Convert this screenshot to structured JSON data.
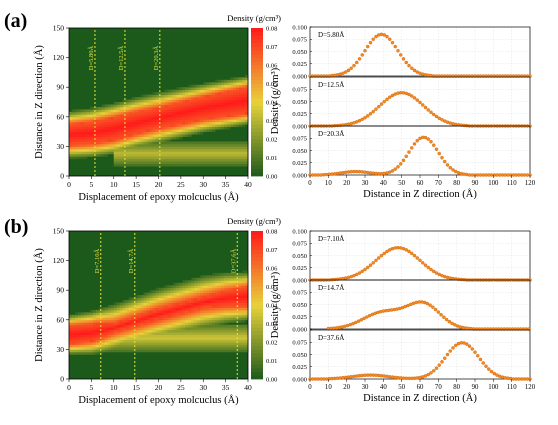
{
  "panels": [
    {
      "label": "(a)",
      "heatmap": {
        "type": "heatmap",
        "xlabel": "Displacement of epoxy molcuclus (Å)",
        "ylabel": "Distance in Z direction (Å)",
        "xlim": [
          0,
          40
        ],
        "ylim": [
          0,
          150
        ],
        "xticks": [
          "0",
          "5",
          "10",
          "15",
          "20",
          "25",
          "30",
          "35",
          "40"
        ],
        "yticks": [
          "0",
          "30",
          "60",
          "90",
          "120",
          "150"
        ],
        "colorbar": {
          "title": "Density (g/cm³)",
          "range": [
            0,
            0.08
          ],
          "ticks": [
            "0.00",
            "0.01",
            "0.02",
            "0.03",
            "0.04",
            "0.05",
            "0.06",
            "0.07",
            "0.08"
          ]
        },
        "band_center": [
          [
            0,
            42
          ],
          [
            5,
            44
          ],
          [
            10,
            48
          ],
          [
            15,
            54
          ],
          [
            20,
            59
          ],
          [
            25,
            64
          ],
          [
            30,
            69
          ],
          [
            35,
            73
          ],
          [
            40,
            77
          ]
        ],
        "band_halfwidth": [
          [
            0,
            24
          ],
          [
            10,
            26
          ],
          [
            20,
            26
          ],
          [
            30,
            25
          ],
          [
            40,
            25
          ]
        ],
        "core_halfwidth": [
          [
            0,
            10
          ],
          [
            10,
            11
          ],
          [
            20,
            10
          ],
          [
            30,
            11
          ],
          [
            40,
            13
          ]
        ],
        "secondary": [
          {
            "x_from": 10,
            "x_to": 40,
            "center": 23,
            "halfwidth": 12,
            "strength": 0.3
          }
        ],
        "markers": [
          {
            "x": 5.8,
            "label": "D=5.80Å"
          },
          {
            "x": 12.5,
            "label": "D=12.5Å"
          },
          {
            "x": 20.3,
            "label": "D=20.3Å"
          }
        ]
      },
      "profiles": [
        {
          "type": "scatter",
          "annotation": "D=5.80Å",
          "xlim": [
            0,
            120
          ],
          "ylim": [
            0,
            0.1
          ],
          "yticks": [
            "0.000",
            "0.025",
            "0.050",
            "0.075",
            "0.100"
          ],
          "peaks": [
            {
              "center": 39,
              "height": 0.085,
              "sigma": 9
            }
          ],
          "x_range": [
            0,
            120
          ]
        },
        {
          "type": "scatter",
          "annotation": "D=12.5Å",
          "xlim": [
            0,
            120
          ],
          "ylim": [
            0,
            0.1
          ],
          "yticks": [
            "0.000",
            "0.025",
            "0.050",
            "0.075",
            ""
          ],
          "peaks": [
            {
              "center": 50,
              "height": 0.068,
              "sigma": 12
            }
          ],
          "x_range": [
            0,
            120
          ]
        },
        {
          "type": "scatter",
          "annotation": "D=20.3Å",
          "xlim": [
            0,
            120
          ],
          "ylim": [
            0,
            0.1
          ],
          "yticks": [
            "0.000",
            "0.025",
            "0.050",
            "0.075",
            ""
          ],
          "peaks": [
            {
              "center": 62,
              "height": 0.077,
              "sigma": 8
            },
            {
              "center": 25,
              "height": 0.007,
              "sigma": 8
            }
          ],
          "x_range": [
            0,
            120
          ]
        }
      ],
      "profile_ylabel": "Density (g/cm³)",
      "profile_xlabel": "Distance in Z direction (Å)",
      "profile_xticks": [
        "0",
        "10",
        "20",
        "30",
        "40",
        "50",
        "60",
        "70",
        "80",
        "90",
        "100",
        "110",
        "120"
      ]
    },
    {
      "label": "(b)",
      "heatmap": {
        "type": "heatmap",
        "xlabel": "Displacement of epoxy molcuclus (Å)",
        "ylabel": "Distance in Z direction (Å)",
        "xlim": [
          0,
          40
        ],
        "ylim": [
          0,
          150
        ],
        "xticks": [
          "0",
          "5",
          "10",
          "15",
          "20",
          "25",
          "30",
          "35",
          "40"
        ],
        "yticks": [
          "0",
          "30",
          "60",
          "90",
          "120",
          "150"
        ],
        "colorbar": {
          "title": "Density (g/cm³)",
          "range": [
            0,
            0.08
          ],
          "ticks": [
            "0.00",
            "0.01",
            "0.02",
            "0.03",
            "0.04",
            "0.05",
            "0.06",
            "0.07",
            "0.08"
          ]
        },
        "band_center": [
          [
            0,
            45
          ],
          [
            5,
            47
          ],
          [
            10,
            52
          ],
          [
            15,
            59
          ],
          [
            20,
            66
          ],
          [
            25,
            72
          ],
          [
            30,
            78
          ],
          [
            35,
            82
          ],
          [
            40,
            84
          ]
        ],
        "band_halfwidth": [
          [
            0,
            20
          ],
          [
            10,
            24
          ],
          [
            20,
            26
          ],
          [
            30,
            27
          ],
          [
            40,
            25
          ]
        ],
        "core_halfwidth": [
          [
            0,
            9
          ],
          [
            6,
            8
          ],
          [
            10,
            4
          ],
          [
            20,
            5
          ],
          [
            30,
            5
          ],
          [
            35,
            7
          ],
          [
            40,
            9
          ]
        ],
        "secondary": [
          {
            "x_from": 8,
            "x_to": 40,
            "center": 42,
            "halfwidth": 14,
            "strength": 0.35
          }
        ],
        "markers": [
          {
            "x": 7.1,
            "label": "D=7.10Å"
          },
          {
            "x": 14.7,
            "label": "D=14.7Å"
          },
          {
            "x": 37.6,
            "label": "D=37.6Å"
          }
        ]
      },
      "profiles": [
        {
          "type": "scatter",
          "annotation": "D=7.10Å",
          "xlim": [
            0,
            120
          ],
          "ylim": [
            0,
            0.1
          ],
          "yticks": [
            "0.000",
            "0.025",
            "0.050",
            "0.075",
            "0.100"
          ],
          "peaks": [
            {
              "center": 48,
              "height": 0.066,
              "sigma": 12
            }
          ],
          "x_range": [
            0,
            120
          ]
        },
        {
          "type": "scatter",
          "annotation": "D=14.7Å",
          "xlim": [
            0,
            120
          ],
          "ylim": [
            0,
            0.1
          ],
          "yticks": [
            "0.000",
            "0.025",
            "0.050",
            "0.075",
            ""
          ],
          "peaks": [
            {
              "center": 62,
              "height": 0.05,
              "sigma": 9
            },
            {
              "center": 40,
              "height": 0.034,
              "sigma": 11
            }
          ],
          "x_range": [
            10,
            120
          ]
        },
        {
          "type": "scatter",
          "annotation": "D=37.6Å",
          "xlim": [
            0,
            120
          ],
          "ylim": [
            0,
            0.1
          ],
          "yticks": [
            "0.000",
            "0.025",
            "0.050",
            "0.075",
            ""
          ],
          "peaks": [
            {
              "center": 83,
              "height": 0.074,
              "sigma": 9
            },
            {
              "center": 33,
              "height": 0.008,
              "sigma": 10
            }
          ],
          "x_range": [
            0,
            120
          ]
        }
      ],
      "profile_ylabel": "Density (g/cm³)",
      "profile_xlabel": "Distance in Z direction (Å)",
      "profile_xticks": [
        "0",
        "10",
        "20",
        "30",
        "40",
        "50",
        "60",
        "70",
        "80",
        "90",
        "100",
        "110",
        "120"
      ]
    }
  ],
  "colors": {
    "low": "#1c5a1c",
    "mid": "#e8d23a",
    "high": "#ff1a1a",
    "markers": "#e8e23a",
    "points": "#f5881f",
    "grid": "#d8d8d8"
  }
}
